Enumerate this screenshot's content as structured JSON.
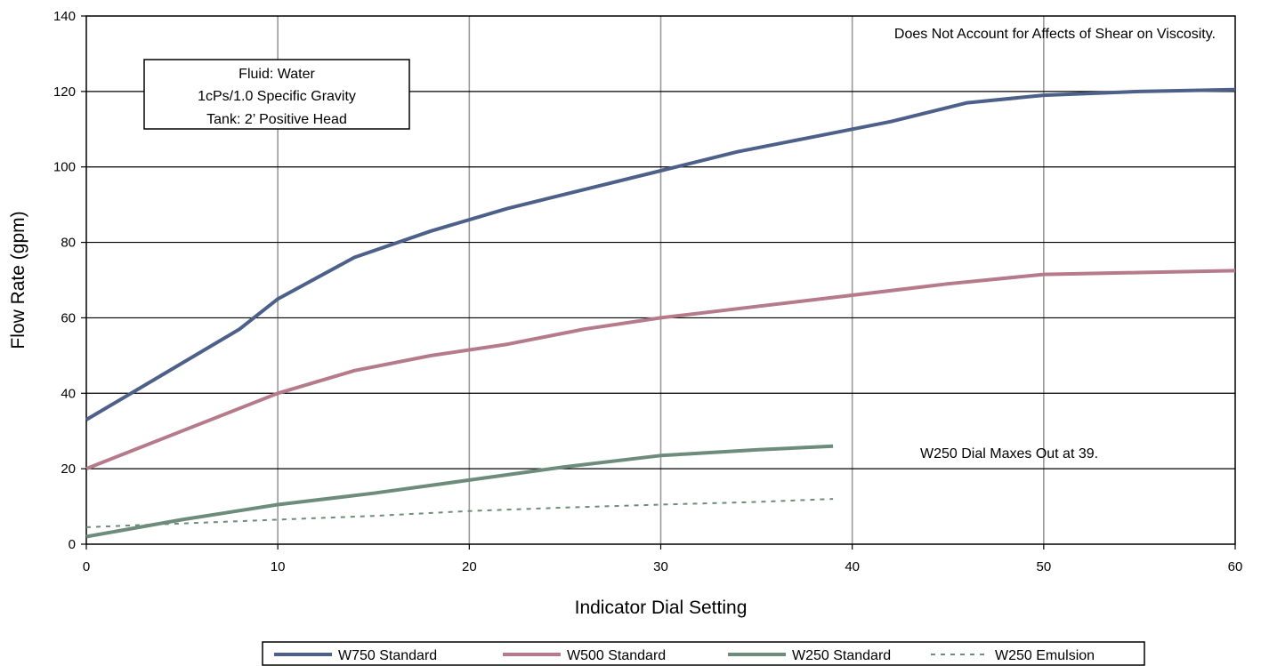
{
  "chart_data": {
    "type": "line",
    "title": "",
    "xlabel": "Indicator Dial Setting",
    "ylabel": "Flow Rate (gpm)",
    "xlim": [
      0,
      60
    ],
    "ylim": [
      0,
      140
    ],
    "x_ticks": [
      "0",
      "10",
      "20",
      "30",
      "40",
      "50",
      "60"
    ],
    "y_ticks": [
      "0",
      "20",
      "40",
      "60",
      "80",
      "100",
      "120",
      "140"
    ],
    "grid": {
      "vertical": true,
      "horizontal": true
    },
    "legend_position": "bottom",
    "series": [
      {
        "name": "W750 Standard",
        "color": "#4c6089",
        "style": "solid",
        "points": [
          [
            0,
            33
          ],
          [
            4,
            45
          ],
          [
            8,
            57
          ],
          [
            10,
            65
          ],
          [
            14,
            76
          ],
          [
            18,
            83
          ],
          [
            22,
            89
          ],
          [
            26,
            94
          ],
          [
            30,
            99
          ],
          [
            34,
            104
          ],
          [
            38,
            108
          ],
          [
            42,
            112
          ],
          [
            46,
            117
          ],
          [
            50,
            119
          ],
          [
            55,
            120
          ],
          [
            60,
            120.5
          ]
        ]
      },
      {
        "name": "W500 Standard",
        "color": "#b57a8c",
        "style": "solid",
        "points": [
          [
            0,
            20
          ],
          [
            5,
            30
          ],
          [
            10,
            40
          ],
          [
            14,
            46
          ],
          [
            18,
            50
          ],
          [
            22,
            53
          ],
          [
            26,
            57
          ],
          [
            30,
            60
          ],
          [
            35,
            63
          ],
          [
            40,
            66
          ],
          [
            45,
            69
          ],
          [
            50,
            71.5
          ],
          [
            55,
            72
          ],
          [
            60,
            72.5
          ]
        ]
      },
      {
        "name": "W250 Standard",
        "color": "#6e8c7b",
        "style": "solid",
        "points": [
          [
            0,
            2
          ],
          [
            5,
            6.5
          ],
          [
            10,
            10.5
          ],
          [
            15,
            13.5
          ],
          [
            20,
            17
          ],
          [
            25,
            20.5
          ],
          [
            30,
            23.5
          ],
          [
            35,
            25
          ],
          [
            39,
            26
          ]
        ]
      },
      {
        "name": "W250 Emulsion",
        "color": "#6e8c7b",
        "style": "dotted",
        "points": [
          [
            0,
            4.5
          ],
          [
            5,
            5.5
          ],
          [
            10,
            6.5
          ],
          [
            15,
            7.5
          ],
          [
            20,
            8.8
          ],
          [
            25,
            9.7
          ],
          [
            30,
            10.5
          ],
          [
            35,
            11.2
          ],
          [
            39,
            12
          ]
        ]
      }
    ],
    "annotations": {
      "shear_note": "Does Not Account for Affects of Shear on Viscosity.",
      "dial_note": "W250 Dial Maxes Out at 39.",
      "fluid_box": [
        "Fluid: Water",
        "1cPs/1.0 Specific Gravity",
        "Tank: 2’ Positive Head"
      ]
    }
  }
}
